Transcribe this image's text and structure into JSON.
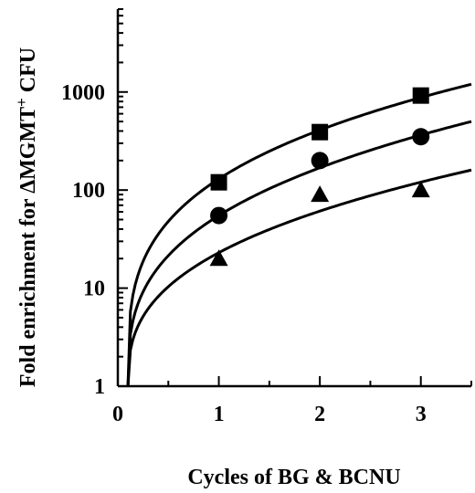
{
  "chart_data": {
    "type": "scatter",
    "title": "",
    "xlabel": "Cycles of BG & BCNU",
    "ylabel": {
      "prefix": "Fold enrichment for ",
      "symbol": "Δ",
      "main": "MGMT",
      "superscript": "+",
      "suffix": " CFU"
    },
    "x_scale": "linear",
    "y_scale": "log",
    "xlim": [
      0,
      3.5
    ],
    "ylim": [
      1,
      7000
    ],
    "x_ticks": [
      "0",
      "1",
      "2",
      "3"
    ],
    "y_ticks": [
      "1",
      "10",
      "100",
      "1000"
    ],
    "grid": false,
    "legend": "none",
    "series": [
      {
        "marker": "square",
        "x": [
          1,
          2,
          3
        ],
        "y": [
          120,
          390,
          920
        ]
      },
      {
        "marker": "circle",
        "x": [
          1,
          2,
          3
        ],
        "y": [
          55,
          200,
          350
        ]
      },
      {
        "marker": "triangle",
        "x": [
          1,
          2,
          3
        ],
        "y": [
          20,
          90,
          100
        ]
      }
    ],
    "fit_curves": [
      {
        "shape": "logarithmic",
        "x_start": 0.1,
        "x_end": 3.5,
        "y_at_x1": 130,
        "y_at_x3_5": 1200
      },
      {
        "shape": "logarithmic",
        "x_start": 0.1,
        "x_end": 3.5,
        "y_at_x1": 55,
        "y_at_x3_5": 500
      },
      {
        "shape": "logarithmic",
        "x_start": 0.1,
        "x_end": 3.5,
        "y_at_x1": 23,
        "y_at_x3_5": 160
      }
    ],
    "color": "#000000"
  }
}
